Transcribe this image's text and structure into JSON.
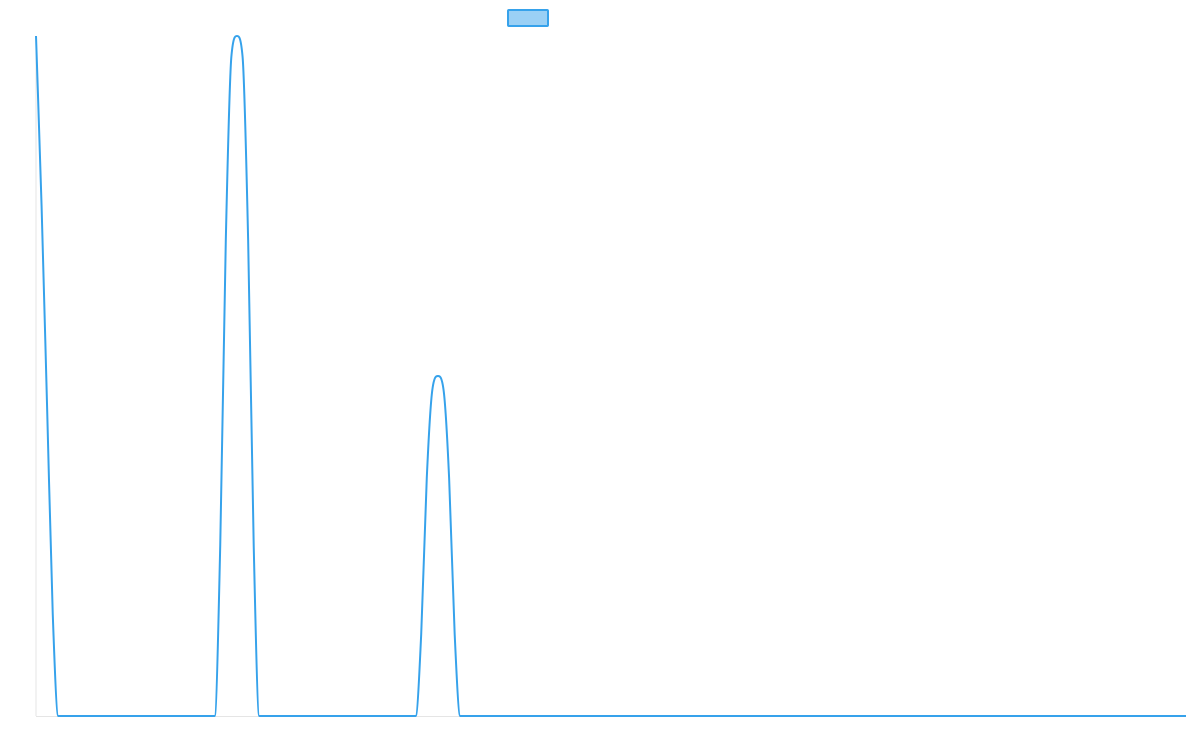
{
  "chart_data": {
    "type": "line",
    "title": "",
    "xlabel": "",
    "ylabel": "",
    "grid": false,
    "legend_position": "top",
    "xlim": [
      0,
      1.03
    ],
    "ylim": [
      0,
      1
    ],
    "series": [
      {
        "name": "",
        "line_color": "#36A2EB",
        "fill_color": "#9AD0F5",
        "x": [
          0,
          0.005,
          0.01,
          0.015,
          0.02,
          0.16,
          0.165,
          0.17,
          0.175,
          0.18,
          0.185,
          0.19,
          0.195,
          0.2,
          0.34,
          0.345,
          0.35,
          0.355,
          0.36,
          0.365,
          0.37,
          0.375,
          0.38,
          1.03
        ],
        "y": [
          1,
          0.75,
          0.45,
          0.15,
          0,
          0,
          0.25,
          0.7,
          0.97,
          1,
          0.97,
          0.7,
          0.25,
          0,
          0,
          0.12,
          0.35,
          0.48,
          0.5,
          0.48,
          0.35,
          0.12,
          0,
          0
        ]
      }
    ]
  }
}
